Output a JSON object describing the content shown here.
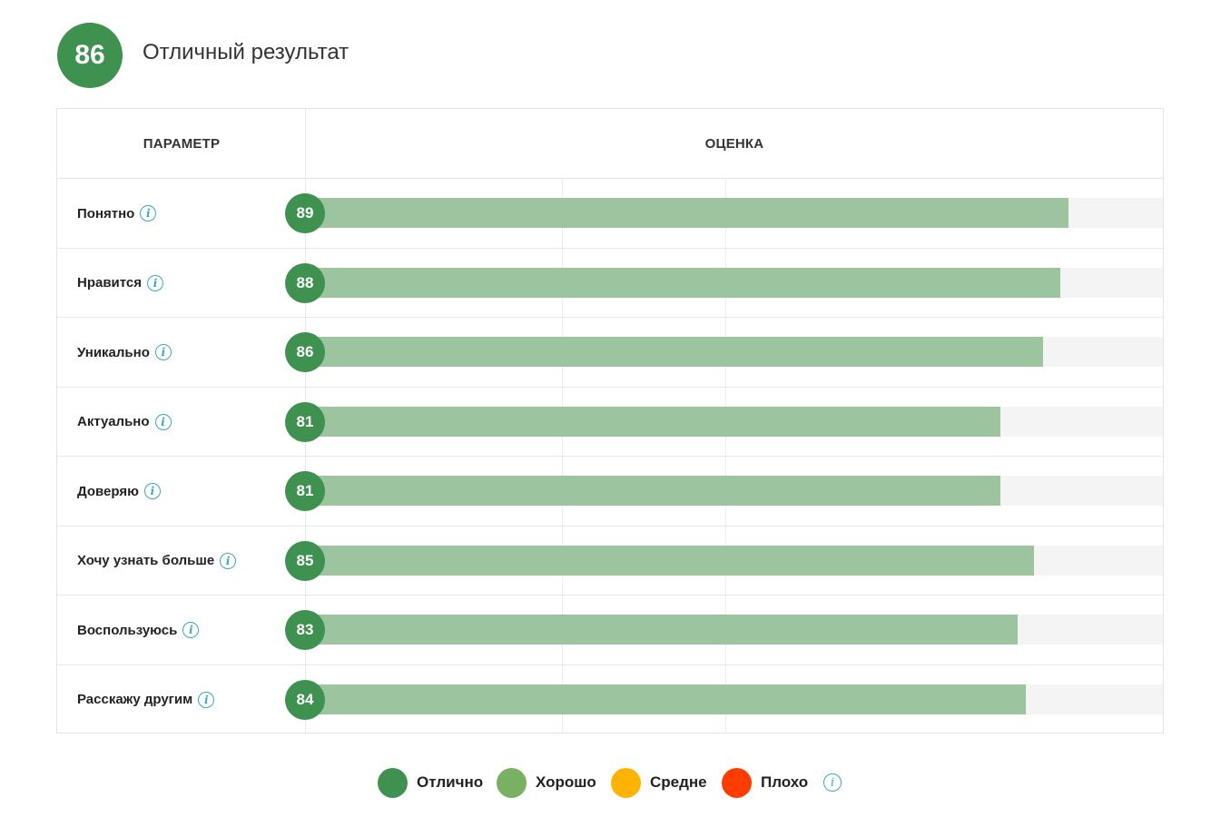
{
  "summary": {
    "score": "86",
    "title": "Отличный результат"
  },
  "table": {
    "col_param": "ПАРАМЕТР",
    "col_score": "ОЦЕНКА"
  },
  "chart_data": {
    "type": "bar",
    "orientation": "horizontal",
    "categories": [
      "Понятно",
      "Нравится",
      "Уникально",
      "Актуально",
      "Доверяю",
      "Хочу узнать больше",
      "Воспользуюсь",
      "Расскажу другим"
    ],
    "values": [
      89,
      88,
      86,
      81,
      81,
      85,
      83,
      84
    ],
    "xlim": [
      0,
      100
    ],
    "grid": true,
    "bar_color": "#9bc49f",
    "badge_color": "#3e914f"
  },
  "info_icon": "info-icon",
  "legend": [
    {
      "label": "Отлично",
      "color": "#3e914f"
    },
    {
      "label": "Хорошо",
      "color": "#78b162"
    },
    {
      "label": "Средне",
      "color": "#ffb300"
    },
    {
      "label": "Плохо",
      "color": "#ff3d00"
    }
  ]
}
